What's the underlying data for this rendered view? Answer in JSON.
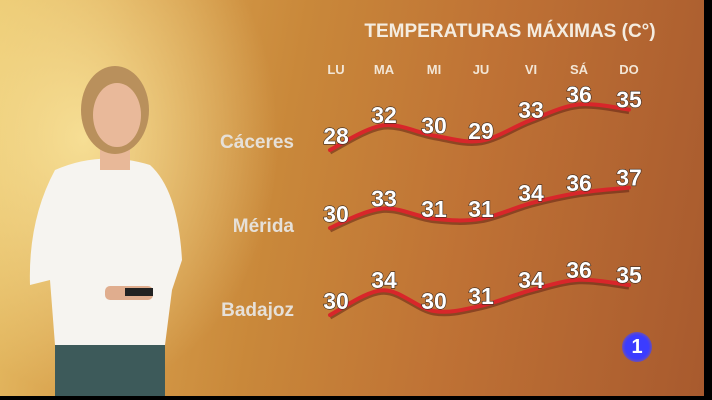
{
  "chart_data": {
    "type": "line",
    "title": "TEMPERATURAS MÁXIMAS (C°)",
    "categories": [
      "LU",
      "MA",
      "MI",
      "JU",
      "VI",
      "SÁ",
      "DO"
    ],
    "series": [
      {
        "name": "Cáceres",
        "values": [
          28,
          32,
          30,
          29,
          33,
          36,
          35
        ]
      },
      {
        "name": "Mérida",
        "values": [
          30,
          33,
          31,
          31,
          34,
          36,
          37
        ]
      },
      {
        "name": "Badajoz",
        "values": [
          30,
          34,
          30,
          31,
          34,
          36,
          35
        ]
      }
    ],
    "line_color": "#d8262a",
    "grid": false,
    "legend": "left"
  },
  "branding": {
    "channel_logo": "1",
    "logo_color": "#3b3cff"
  }
}
